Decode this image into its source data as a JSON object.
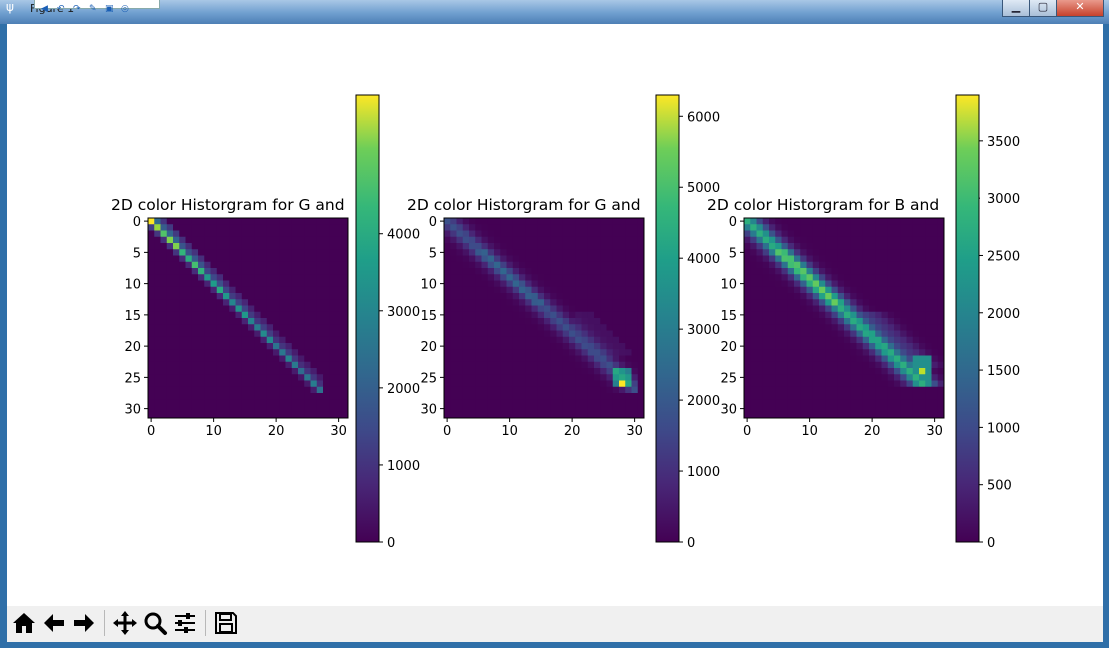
{
  "window": {
    "title": "Figure 1",
    "controls": [
      "minimize",
      "maximize",
      "close"
    ]
  },
  "quick_access_icons": [
    "back-icon",
    "undo-icon",
    "redo-icon",
    "edit-icon",
    "clipboard-icon",
    "help-icon"
  ],
  "toolbar": {
    "buttons": [
      {
        "name": "home-icon"
      },
      {
        "name": "back-arrow-icon"
      },
      {
        "name": "forward-arrow-icon"
      },
      {
        "name": "pan-icon"
      },
      {
        "name": "zoom-icon"
      },
      {
        "name": "configure-subplots-icon"
      },
      {
        "name": "save-icon"
      }
    ]
  },
  "chart_data": [
    {
      "type": "heatmap",
      "title": "2D color Historgram for G and",
      "x_ticks": [
        "0",
        "10",
        "20",
        "30"
      ],
      "y_ticks": [
        "0",
        "5",
        "10",
        "15",
        "20",
        "25",
        "30"
      ],
      "colormap": "viridis",
      "colorbar": {
        "max": 5800,
        "ticks": [
          "0",
          "1000",
          "2000",
          "3000",
          "4000"
        ],
        "tick_values": [
          0,
          1000,
          2000,
          3000,
          4000
        ]
      },
      "description_hint": "narrow diagonal band from (0,0) to (26,26), peak values near the top-left end"
    },
    {
      "type": "heatmap",
      "title": "2D color Historgram for G and",
      "x_ticks": [
        "0",
        "10",
        "20",
        "30"
      ],
      "y_ticks": [
        "0",
        "5",
        "10",
        "15",
        "20",
        "25",
        "30"
      ],
      "colormap": "viridis",
      "colorbar": {
        "max": 6300,
        "ticks": [
          "0",
          "1000",
          "2000",
          "3000",
          "4000",
          "5000",
          "6000"
        ],
        "tick_values": [
          0,
          1000,
          2000,
          3000,
          4000,
          5000,
          6000
        ]
      },
      "description_hint": "broader diffuse diagonal band, bright peak at (28,26)"
    },
    {
      "type": "heatmap",
      "title": "2D color Historgram for B and",
      "x_ticks": [
        "0",
        "10",
        "20",
        "30"
      ],
      "y_ticks": [
        "0",
        "5",
        "10",
        "15",
        "20",
        "25",
        "30"
      ],
      "colormap": "viridis",
      "colorbar": {
        "max": 3900,
        "ticks": [
          "0",
          "500",
          "1000",
          "1500",
          "2000",
          "2500",
          "3000",
          "3500"
        ],
        "tick_values": [
          0,
          500,
          1000,
          1500,
          2000,
          2500,
          3000,
          3500
        ]
      },
      "description_hint": "wide diagonal band with side lobe, bright peak at (28,24)"
    }
  ]
}
